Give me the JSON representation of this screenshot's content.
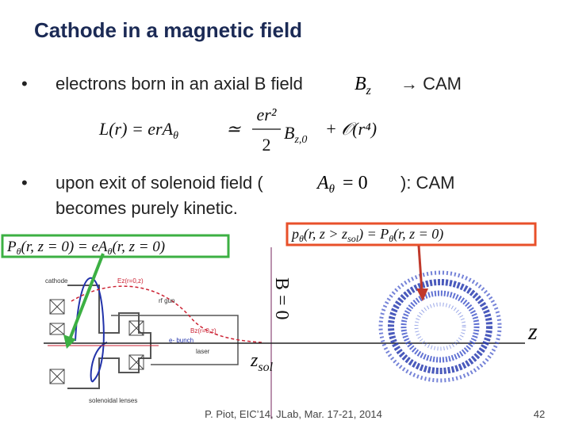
{
  "title": "Cathode in a magnetic field",
  "bullet1": {
    "text": "electrons born in an axial B field",
    "math_base": "B",
    "math_sub": "z",
    "after": "→ CAM"
  },
  "equation": {
    "left": "L(r) = erA",
    "left_sub": "θ",
    "approx": "≃",
    "numerator": "er²",
    "denominator": "2",
    "b": "B",
    "b_sub": "z,0",
    "rest": "+ 𝒪(r⁴)"
  },
  "bullet2": {
    "text": "upon exit of solenoid field (",
    "math_base": "A",
    "math_sub": "θ",
    "math_rest": "= 0",
    "after": "): CAM",
    "line2": "becomes purely kinetic."
  },
  "green_box": {
    "a": "P",
    "a_sub": "θ",
    "b": "(r, z = 0) = eA",
    "b_sub": "θ",
    "c": "(r, z = 0)"
  },
  "red_box": {
    "a": "p",
    "a_sub": "θ",
    "b": "(r, z > z",
    "b_sub": "sol",
    "c": ") = P",
    "c_sub": "θ",
    "d": "(r, z = 0)"
  },
  "diagram": {
    "cathode": "cathode",
    "ez": "Ez(r=0,z)",
    "rf_gun": "rf gun",
    "bz": "Bz(r=0,z)",
    "bunch": "e- bunch",
    "laser": "laser",
    "lenses": "solenoidal lenses",
    "b_zero": "B = 0",
    "zsol_base": "z",
    "zsol_sub": "sol",
    "z_axis": "z"
  },
  "footer": {
    "citation": "P. Piot, EIC’14, JLab, Mar. 17-21, 2014",
    "page": "42"
  }
}
